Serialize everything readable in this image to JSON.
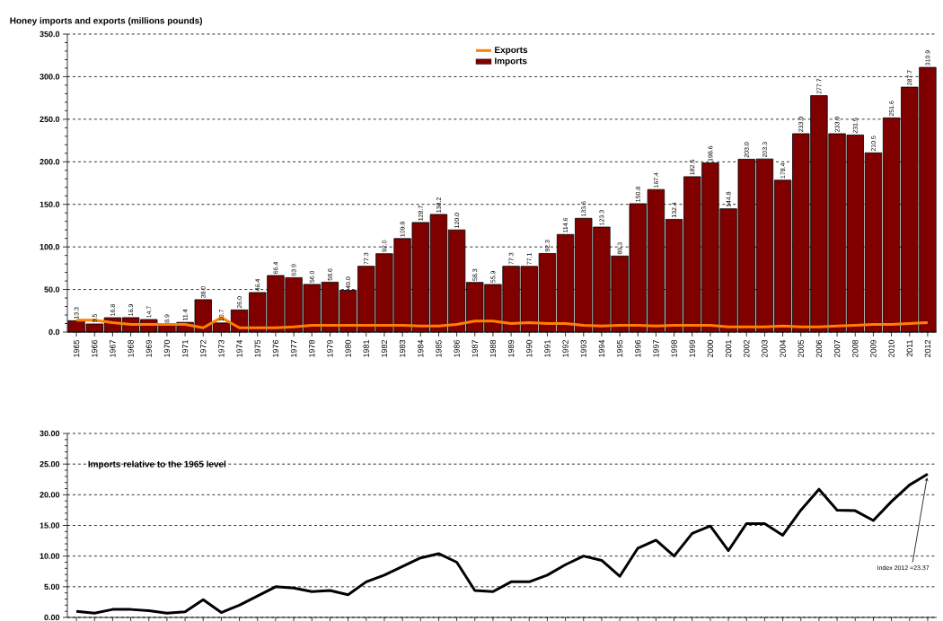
{
  "chart_data": [
    {
      "type": "bar",
      "title": "Honey imports and exports (millions pounds)",
      "categories": [
        "1965",
        "1966",
        "1967",
        "1968",
        "1969",
        "1970",
        "1971",
        "1972",
        "1973",
        "1974",
        "1975",
        "1976",
        "1977",
        "1978",
        "1979",
        "1980",
        "1981",
        "1982",
        "1983",
        "1984",
        "1985",
        "1986",
        "1987",
        "1988",
        "1989",
        "1990",
        "1991",
        "1992",
        "1993",
        "1994",
        "1995",
        "1996",
        "1997",
        "1998",
        "1999",
        "2000",
        "2001",
        "2002",
        "2003",
        "2004",
        "2005",
        "2006",
        "2007",
        "2008",
        "2009",
        "2010",
        "2011",
        "2012"
      ],
      "series": [
        {
          "name": "Exports",
          "type": "line",
          "color": "#ff8000",
          "values": [
            14,
            14,
            11,
            9,
            9,
            9,
            9,
            5,
            17,
            5,
            5,
            5,
            6,
            8,
            8,
            8,
            8,
            8,
            8,
            7,
            7,
            9,
            13,
            13,
            10,
            11,
            10,
            10,
            8,
            7,
            8,
            8,
            7,
            8,
            8,
            8,
            6,
            6,
            6,
            7,
            6,
            6,
            7,
            8,
            9,
            9,
            10,
            11
          ]
        },
        {
          "name": "Imports",
          "type": "bar",
          "color": "#800000",
          "values": [
            13.3,
            9.5,
            16.8,
            16.9,
            14.7,
            8.9,
            11.4,
            38.0,
            10.7,
            26.0,
            46.4,
            66.4,
            63.9,
            56.0,
            58.6,
            49.0,
            77.3,
            92.0,
            109.8,
            128.7,
            138.2,
            120.0,
            58.3,
            55.9,
            77.3,
            77.1,
            92.3,
            114.6,
            133.6,
            123.3,
            89.3,
            150.8,
            167.4,
            132.4,
            182.5,
            198.6,
            144.8,
            203.0,
            203.3,
            178.4,
            233.0,
            277.7,
            233.0,
            231.5,
            210.5,
            251.6,
            287.7,
            310.9
          ],
          "value_labels": [
            "13.3",
            "9.5",
            "16.8",
            "16.9",
            "14.7",
            "8.9",
            "11.4",
            "38.0",
            "10.7",
            "26.0",
            "46.4",
            "66.4",
            "63.9",
            "56.0",
            "58.6",
            "49.0",
            "77.3",
            "92.0",
            "109.8",
            "128.7",
            "138.2",
            "120.0",
            "58.3",
            "55.9",
            "77.3",
            "77.1",
            "92.3",
            "114.6",
            "133.6",
            "123.3",
            "89.3",
            "150.8",
            "167.4",
            "132.4",
            "182.5",
            "198.6",
            "144.8",
            "203.0",
            "203.3",
            "178.4",
            "233.0",
            "277.7",
            "233.0",
            "231.5",
            "210.5",
            "251.6",
            "287.7",
            "310.9"
          ]
        }
      ],
      "ylim": [
        0,
        350
      ],
      "yticks": [
        {
          "value": 0,
          "label": "0.0"
        },
        {
          "value": 50,
          "label": "50.0"
        },
        {
          "value": 100,
          "label": "100.0"
        },
        {
          "value": 150,
          "label": "150.0"
        },
        {
          "value": 200,
          "label": "200.0"
        },
        {
          "value": 250,
          "label": "250.0"
        },
        {
          "value": 300,
          "label": "300.0"
        },
        {
          "value": 350,
          "label": "350.0"
        }
      ],
      "grid": "y",
      "legend": "top"
    },
    {
      "type": "line",
      "title": "Imports relative  to the 1965 level",
      "categories": [
        null,
        null,
        null,
        null,
        null,
        null,
        null,
        null,
        null,
        null,
        null,
        null,
        null,
        null,
        null,
        null,
        null,
        null,
        null,
        null,
        null,
        null,
        null,
        null,
        null,
        null,
        null,
        null,
        null,
        null,
        null,
        null,
        null,
        null,
        null,
        null,
        null,
        null,
        null,
        null,
        null,
        null,
        null,
        null,
        null,
        null,
        null,
        null
      ],
      "series": [
        {
          "color": "#000000",
          "values": [
            1.0,
            0.7,
            1.3,
            1.3,
            1.1,
            0.7,
            0.9,
            2.9,
            0.8,
            2.0,
            3.5,
            5.0,
            4.8,
            4.2,
            4.4,
            3.7,
            5.8,
            6.9,
            8.3,
            9.7,
            10.4,
            9.0,
            4.4,
            4.2,
            5.8,
            5.8,
            6.9,
            8.6,
            10.0,
            9.3,
            6.7,
            11.3,
            12.6,
            10.0,
            13.7,
            14.9,
            10.9,
            15.3,
            15.3,
            13.4,
            17.5,
            20.9,
            17.5,
            17.4,
            15.8,
            18.9,
            21.6,
            23.37
          ]
        }
      ],
      "ylim": [
        0,
        30
      ],
      "yticks": [
        {
          "value": 0,
          "label": "0.00"
        },
        {
          "value": 5,
          "label": "5.00"
        },
        {
          "value": 10,
          "label": "10.00"
        },
        {
          "value": 15,
          "label": "15.00"
        },
        {
          "value": 20,
          "label": "20.00"
        },
        {
          "value": 25,
          "label": "25.00"
        },
        {
          "value": 30,
          "label": "30.00"
        }
      ],
      "grid": "y",
      "tick_labels": "y",
      "annotations": [
        "Index 2012 =23.37"
      ]
    }
  ]
}
